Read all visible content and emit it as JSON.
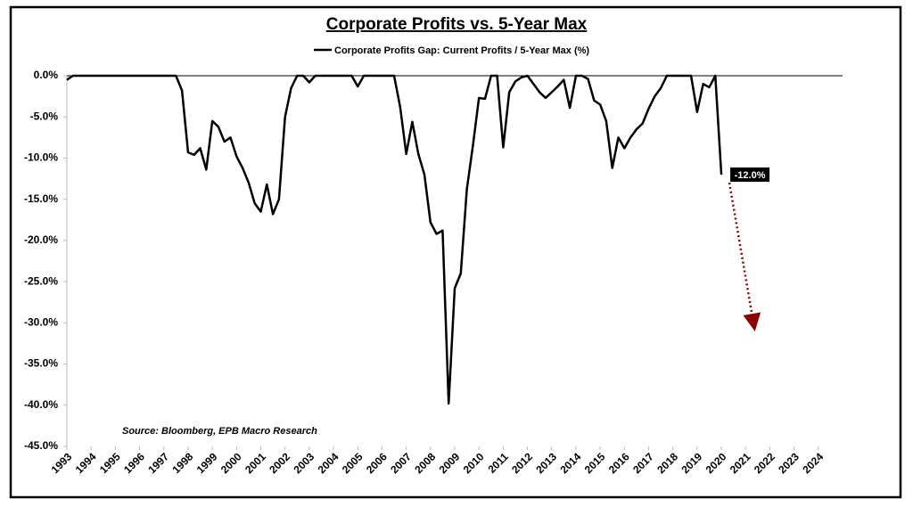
{
  "chart_data": {
    "type": "line",
    "title": "Corporate Profits vs. 5-Year Max",
    "source": "Source: Bloomberg, EPB Macro Research",
    "x": [
      1993,
      1993.25,
      1993.5,
      1993.75,
      1994,
      1994.25,
      1994.5,
      1994.75,
      1995,
      1995.25,
      1995.5,
      1995.75,
      1996,
      1996.25,
      1996.5,
      1996.75,
      1997,
      1997.25,
      1997.5,
      1997.75,
      1998,
      1998.25,
      1998.5,
      1998.75,
      1999,
      1999.25,
      1999.5,
      1999.75,
      2000,
      2000.25,
      2000.5,
      2000.75,
      2001,
      2001.25,
      2001.5,
      2001.75,
      2002,
      2002.25,
      2002.5,
      2002.75,
      2003,
      2003.25,
      2003.5,
      2003.75,
      2004,
      2004.25,
      2004.5,
      2004.75,
      2005,
      2005.25,
      2005.5,
      2005.75,
      2006,
      2006.25,
      2006.5,
      2006.75,
      2007,
      2007.25,
      2007.5,
      2007.75,
      2008,
      2008.25,
      2008.5,
      2008.75,
      2009,
      2009.25,
      2009.5,
      2009.75,
      2010,
      2010.25,
      2010.5,
      2010.75,
      2011,
      2011.25,
      2011.5,
      2011.75,
      2012,
      2012.25,
      2012.5,
      2012.75,
      2013,
      2013.25,
      2013.5,
      2013.75,
      2014,
      2014.25,
      2014.5,
      2014.75,
      2015,
      2015.25,
      2015.5,
      2015.75,
      2016,
      2016.25,
      2016.5,
      2016.75,
      2017,
      2017.25,
      2017.5,
      2017.75,
      2018,
      2018.25,
      2018.5,
      2018.75,
      2019,
      2019.25,
      2019.5,
      2019.75,
      2020
    ],
    "series": [
      {
        "name": "Corporate Profits Gap: Current Profits / 5-Year Max (%)",
        "color": "#000000",
        "values": [
          -0.5,
          0,
          0,
          0,
          0,
          0,
          0,
          0,
          0,
          0,
          0,
          0,
          0,
          0,
          0,
          0,
          0,
          0,
          0,
          -1.8,
          -9.3,
          -9.6,
          -8.8,
          -11.4,
          -5.5,
          -6.2,
          -8.0,
          -7.5,
          -9.8,
          -11.2,
          -13.0,
          -15.5,
          -16.5,
          -13.2,
          -16.8,
          -15.0,
          -5.0,
          -1.5,
          0,
          0,
          -0.8,
          0,
          0,
          0,
          0,
          0,
          0,
          0,
          -1.3,
          0,
          0,
          0,
          0,
          0,
          0,
          -3.8,
          -9.5,
          -5.6,
          -9.5,
          -12.0,
          -17.8,
          -19.2,
          -18.8,
          -39.8,
          -25.8,
          -24.0,
          -13.8,
          -8.5,
          -2.7,
          -2.8,
          0,
          0,
          -8.7,
          -2.0,
          -0.7,
          -0.2,
          0,
          -1.0,
          -2.0,
          -2.7,
          -2.0,
          -1.3,
          -0.5,
          -3.9,
          0,
          0,
          -0.4,
          -3.0,
          -3.5,
          -5.5,
          -11.2,
          -7.5,
          -8.8,
          -7.5,
          -6.5,
          -5.8,
          -4.0,
          -2.5,
          -1.5,
          0,
          0,
          0,
          0,
          0,
          -4.4,
          -1.0,
          -1.4,
          0,
          -12.0
        ]
      }
    ],
    "annotations": [
      {
        "x": 2020,
        "value": -12.0,
        "label": "-12.0%"
      }
    ],
    "xlim": [
      1993,
      2025
    ],
    "xticks": [
      1993,
      1994,
      1995,
      1996,
      1997,
      1998,
      1999,
      2000,
      2001,
      2002,
      2003,
      2004,
      2005,
      2006,
      2007,
      2008,
      2009,
      2010,
      2011,
      2012,
      2013,
      2014,
      2015,
      2016,
      2017,
      2018,
      2019,
      2020,
      2021,
      2022,
      2023,
      2024
    ],
    "ylim": [
      -45,
      0
    ],
    "yticks": [
      {
        "value": 0,
        "label": "0.0%"
      },
      {
        "value": -5,
        "label": "-5.0%"
      },
      {
        "value": -10,
        "label": "-10.0%"
      },
      {
        "value": -15,
        "label": "-15.0%"
      },
      {
        "value": -20,
        "label": "-20.0%"
      },
      {
        "value": -25,
        "label": "-25.0%"
      },
      {
        "value": -30,
        "label": "-30.0%"
      },
      {
        "value": -35,
        "label": "-35.0%"
      },
      {
        "value": -40,
        "label": "-40.0%"
      },
      {
        "value": -45,
        "label": "-45.0%"
      }
    ],
    "grid": false
  }
}
